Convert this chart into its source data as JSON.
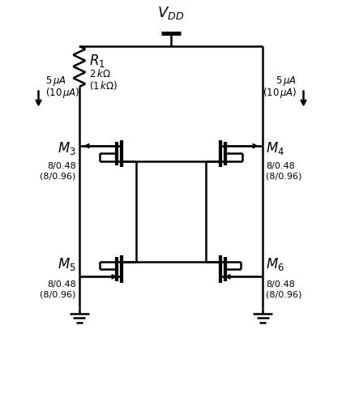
{
  "bg_color": "#ffffff",
  "line_color": "#000000",
  "line_width": 1.8,
  "fig_width": 4.22,
  "fig_height": 5.12,
  "vdd_label": "$V_{DD}$",
  "r1_label": "$R_1$",
  "r1_val": "$2\\,k\\Omega$",
  "r1_val2": "$(1\\,k\\Omega)$",
  "m3_label": "$M_3$",
  "m4_label": "$M_4$",
  "m5_label": "$M_5$",
  "m6_label": "$M_6$",
  "size1": "8/0.48",
  "size2": "(8/0.96)",
  "cur_l1": "$5\\,\\mu A$",
  "cur_l2": "$(10\\,\\mu A)$",
  "cur_r1": "$5\\,\\mu A$",
  "cur_r2": "$(10\\,\\mu A)$"
}
